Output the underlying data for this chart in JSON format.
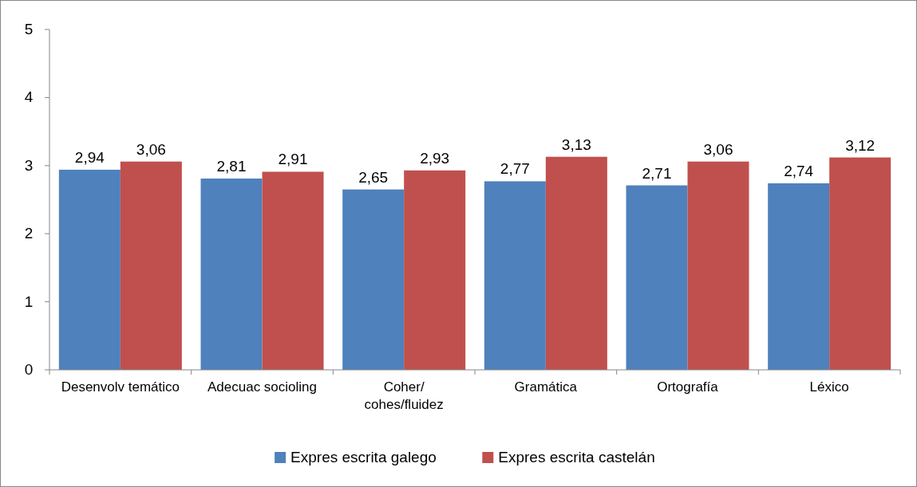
{
  "chart_data": {
    "type": "bar",
    "categories": [
      "Desenvolv temático",
      "Adecuac socioling",
      "Coher/\ncohes/fluidez",
      "Gramática",
      "Ortografía",
      "Léxico"
    ],
    "series": [
      {
        "name": "Expres escrita galego",
        "color": "#4f81bd",
        "values": [
          2.94,
          2.81,
          2.65,
          2.77,
          2.71,
          2.74
        ],
        "value_labels": [
          "2,94",
          "2,81",
          "2,65",
          "2,77",
          "2,71",
          "2,74"
        ]
      },
      {
        "name": "Expres escrita castelán",
        "color": "#c0504d",
        "values": [
          3.06,
          2.91,
          2.93,
          3.13,
          3.06,
          3.12
        ],
        "value_labels": [
          "3,06",
          "2,91",
          "2,93",
          "3,13",
          "3,06",
          "3,12"
        ]
      }
    ],
    "ylim": [
      0,
      5
    ],
    "yticks": [
      0,
      1,
      2,
      3,
      4,
      5
    ],
    "grid": false,
    "legend": "bottom"
  }
}
